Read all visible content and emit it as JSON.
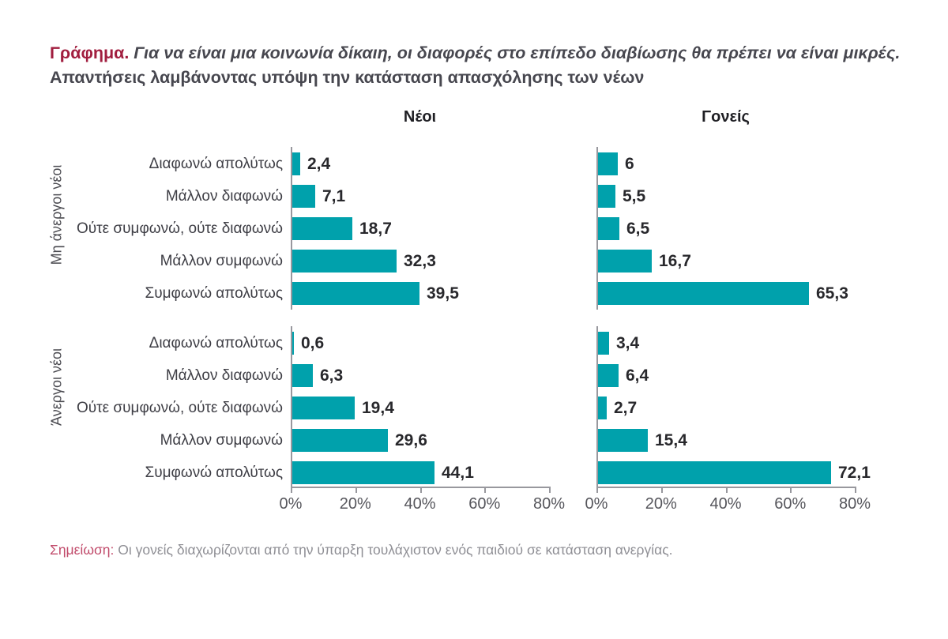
{
  "page": {
    "title_prefix": "Γράφημα.",
    "title_statement": "Για να είναι μια κοινωνία δίκαιη, οι διαφορές στο επίπεδο διαβίωσης θα πρέπει να είναι μικρές.",
    "title_subtitle": "Απαντήσεις λαμβάνοντας υπόψη την κατάσταση απασχόλησης των νέων",
    "note_label": "Σημείωση:",
    "note_text": "Οι γονείς διαχωρίζονται από την ύπαρξη τουλάχιστον ενός παιδιού σε κατάσταση ανεργίας."
  },
  "colors": {
    "bar": "#00A1AC",
    "title_accent": "#A11E3F",
    "note_accent": "#C14B6B",
    "axis": "#98989E",
    "value_label": "#28282C",
    "tick_label": "#56565C"
  },
  "chart_data": {
    "type": "bar",
    "orientation": "horizontal",
    "unit": "%",
    "grid": false,
    "column_headers": [
      "Νέοι",
      "Γονείς"
    ],
    "categories": [
      "Διαφωνώ απολύτως",
      "Μάλλον διαφωνώ",
      "Ούτε συμφωνώ, ούτε διαφωνώ",
      "Μάλλον συμφωνώ",
      "Συμφωνώ απολύτως"
    ],
    "x_ticks": [
      "0%",
      "20%",
      "40%",
      "60%",
      "80%"
    ],
    "xlim": [
      0,
      80
    ],
    "groups": [
      {
        "label": "Μη άνεργοι νέοι",
        "series": [
          {
            "name": "Νέοι",
            "values": [
              2.4,
              7.1,
              18.7,
              32.3,
              39.5
            ]
          },
          {
            "name": "Γονείς",
            "values": [
              6,
              5.5,
              6.5,
              16.7,
              65.3
            ]
          }
        ]
      },
      {
        "label": "Άνεργοι νέοι",
        "series": [
          {
            "name": "Νέοι",
            "values": [
              0.6,
              6.3,
              19.4,
              29.6,
              44.1
            ]
          },
          {
            "name": "Γονείς",
            "values": [
              3.4,
              6.4,
              2.7,
              15.4,
              72.1
            ]
          }
        ]
      }
    ]
  }
}
